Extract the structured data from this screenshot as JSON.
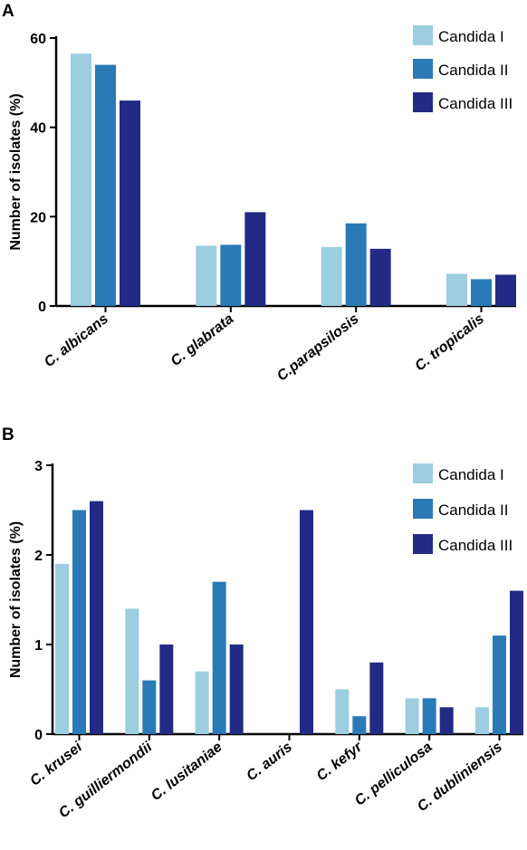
{
  "charts": [
    {
      "panel_label": "A",
      "chart_data": {
        "type": "bar",
        "categories": [
          "C. albicans",
          "C. glabrata",
          "C.parapsilosis",
          "C. tropicalis"
        ],
        "series": [
          {
            "name": "Candida I",
            "color": "#9ccde0",
            "values": [
              56.5,
              13.5,
              13.2,
              7.2
            ]
          },
          {
            "name": "Candida II",
            "color": "#2a7ab7",
            "values": [
              54,
              13.7,
              18.5,
              6
            ]
          },
          {
            "name": "Candida III",
            "color": "#222a85",
            "values": [
              46,
              21,
              12.8,
              7
            ]
          }
        ],
        "title": "",
        "xlabel": "",
        "ylabel": "Number of isolates (%)",
        "ylim": [
          0,
          60
        ],
        "yticks": [
          0,
          20,
          40,
          60
        ],
        "ytick_labels": [
          "0",
          "20",
          "40",
          "60"
        ],
        "grid": false,
        "legend_position": "top-right"
      }
    },
    {
      "panel_label": "B",
      "chart_data": {
        "type": "bar",
        "categories": [
          "C. krusei",
          "C. guilliermondii",
          "C. lusitaniae",
          "C. auris",
          "C. kefyr",
          "C. pelliculosa",
          "C. dubliniensis"
        ],
        "series": [
          {
            "name": "Candida I",
            "color": "#9ccde0",
            "values": [
              1.9,
              1.4,
              0.7,
              0,
              0.5,
              0.4,
              0.3
            ]
          },
          {
            "name": "Candida II",
            "color": "#2a7ab7",
            "values": [
              2.5,
              0.6,
              1.7,
              0,
              0.2,
              0.4,
              1.1
            ]
          },
          {
            "name": "Candida III",
            "color": "#222a85",
            "values": [
              2.6,
              1.0,
              1.0,
              2.5,
              0.8,
              0.3,
              1.6
            ]
          }
        ],
        "title": "",
        "xlabel": "",
        "ylabel": "Number of isolates (%)",
        "ylim": [
          0,
          3
        ],
        "yticks": [
          0,
          1,
          2,
          3
        ],
        "ytick_labels": [
          "0",
          "1",
          "2",
          "3"
        ],
        "grid": false,
        "legend_position": "top-right"
      }
    }
  ]
}
